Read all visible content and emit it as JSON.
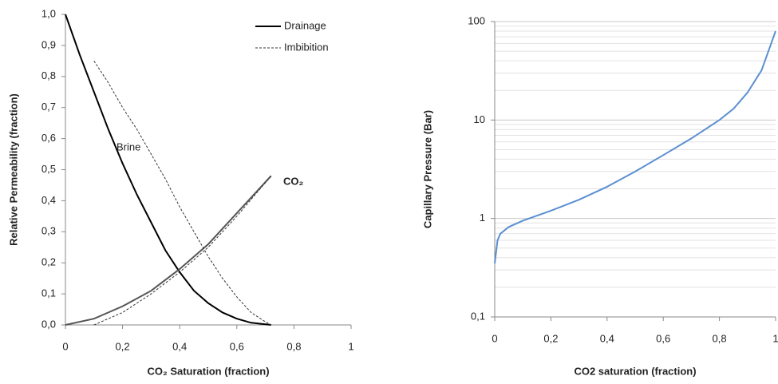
{
  "chart_data": [
    {
      "type": "line",
      "ylabel": "Relative Permeability (fraction)",
      "xlabel": "CO₂ Saturation (fraction)",
      "xlim": [
        0,
        1
      ],
      "xticks": [
        0,
        {
          "value": 0.2,
          "label": "0,2"
        },
        {
          "value": 0.4,
          "label": "0,4"
        },
        {
          "value": 0.6,
          "label": "0,6"
        },
        {
          "value": 0.8,
          "label": "0,8"
        },
        1
      ],
      "ylim": [
        0,
        1
      ],
      "yticks": [
        {
          "value": 0,
          "label": "0,0"
        },
        {
          "value": 0.1,
          "label": "0,1"
        },
        {
          "value": 0.2,
          "label": "0,2"
        },
        {
          "value": 0.3,
          "label": "0,3"
        },
        {
          "value": 0.4,
          "label": "0,4"
        },
        {
          "value": 0.5,
          "label": "0,5"
        },
        {
          "value": 0.6,
          "label": "0,6"
        },
        {
          "value": 0.7,
          "label": "0,7"
        },
        {
          "value": 0.8,
          "label": "0,8"
        },
        {
          "value": 0.9,
          "label": "0,9"
        },
        {
          "value": 1,
          "label": "1,0"
        }
      ],
      "grid": false,
      "log_y": false,
      "legend_position": "upper right",
      "legend": [
        {
          "name": "Drainage",
          "dash": "solid",
          "color": "#000000"
        },
        {
          "name": "Imbibition",
          "dash": "dashed",
          "color": "#333333"
        }
      ],
      "annotations": [
        "Brine",
        "CO₂"
      ],
      "series": [
        {
          "dash": "solid",
          "color": "#000000",
          "x": [
            0,
            0.05,
            0.1,
            0.15,
            0.2,
            0.25,
            0.3,
            0.35,
            0.4,
            0.45,
            0.5,
            0.55,
            0.6,
            0.65,
            0.72
          ],
          "values": [
            1,
            0.87,
            0.75,
            0.63,
            0.52,
            0.42,
            0.33,
            0.24,
            0.17,
            0.11,
            0.07,
            0.04,
            0.02,
            0.007,
            0
          ]
        },
        {
          "dash": "solid",
          "color": "#555555",
          "x": [
            0,
            0.1,
            0.2,
            0.3,
            0.4,
            0.5,
            0.6,
            0.72
          ],
          "values": [
            0,
            0.02,
            0.06,
            0.11,
            0.18,
            0.26,
            0.36,
            0.48
          ]
        },
        {
          "dash": "dashed",
          "color": "#333333",
          "x": [
            0.1,
            0.15,
            0.2,
            0.25,
            0.3,
            0.35,
            0.4,
            0.45,
            0.5,
            0.55,
            0.6,
            0.65,
            0.7,
            0.72
          ],
          "values": [
            0.85,
            0.78,
            0.7,
            0.63,
            0.55,
            0.47,
            0.38,
            0.3,
            0.22,
            0.15,
            0.09,
            0.04,
            0.01,
            0
          ]
        },
        {
          "dash": "dashed",
          "color": "#333333",
          "x": [
            0.1,
            0.2,
            0.3,
            0.4,
            0.5,
            0.6,
            0.72
          ],
          "values": [
            0,
            0.04,
            0.1,
            0.17,
            0.25,
            0.35,
            0.48
          ]
        }
      ]
    },
    {
      "type": "line",
      "ylabel": "Capillary Pressure (Bar)",
      "xlabel": "CO2 saturation (fraction)",
      "xlim": [
        0,
        1
      ],
      "xticks": [
        0,
        {
          "value": 0.2,
          "label": "0,2"
        },
        {
          "value": 0.4,
          "label": "0,4"
        },
        {
          "value": 0.6,
          "label": "0,6"
        },
        {
          "value": 0.8,
          "label": "0,8"
        },
        1
      ],
      "ylim": [
        0.1,
        100
      ],
      "yticks": [
        {
          "value": 0.1,
          "label": "0,1"
        },
        1,
        10,
        100
      ],
      "grid": true,
      "minor_grid": true,
      "log_y": true,
      "series": [
        {
          "dash": "solid",
          "color": "#5b8fd0",
          "x": [
            0,
            0.01,
            0.02,
            0.05,
            0.1,
            0.2,
            0.3,
            0.4,
            0.5,
            0.6,
            0.7,
            0.8,
            0.85,
            0.9,
            0.95,
            1
          ],
          "values": [
            0.35,
            0.6,
            0.7,
            0.82,
            0.95,
            1.2,
            1.55,
            2.1,
            3,
            4.4,
            6.5,
            10,
            13,
            19,
            32,
            80
          ]
        }
      ]
    }
  ]
}
